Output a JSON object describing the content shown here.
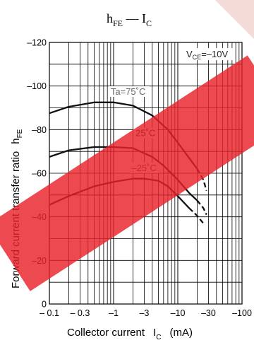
{
  "chart_data": {
    "type": "line",
    "title": {
      "main": "h",
      "main_sub": "FE",
      "sep": " — ",
      "right": "I",
      "right_sub": "C"
    },
    "xlabel": {
      "text": "Collector current",
      "symbol": "I",
      "symbol_sub": "C",
      "unit": "(mA)"
    },
    "ylabel": {
      "text": "Forward current transfer ratio",
      "symbol": "h",
      "symbol_sub": "FE"
    },
    "x_scale": "log",
    "xlim": [
      -0.1,
      -100
    ],
    "ylim": [
      0,
      -120
    ],
    "x_ticks": [
      "– 0.1",
      "– 0.3",
      "–1",
      "–3",
      "–10",
      "–30",
      "–100"
    ],
    "y_ticks": [
      "0",
      "–20",
      "–40",
      "–60",
      "–80",
      "–100",
      "–120"
    ],
    "grid": true,
    "annotation": {
      "main": "V",
      "sub": "CE",
      "value": "=–10V"
    },
    "series": [
      {
        "name": "Ta=75˚C",
        "color": "#111111",
        "x": [
          -0.1,
          -0.2,
          -0.5,
          -1,
          -2,
          -4,
          -7,
          -10,
          -15,
          -20
        ],
        "y": [
          -87.5,
          -90.5,
          -92.5,
          -92.5,
          -91,
          -86.5,
          -80,
          -74,
          -67,
          -62
        ],
        "dashed_x": [
          -20,
          -25,
          -28
        ],
        "dashed_y": [
          -62,
          -57,
          -52
        ]
      },
      {
        "name": "25˚C",
        "color": "#111111",
        "x": [
          -0.1,
          -0.2,
          -0.5,
          -1,
          -2,
          -4,
          -6,
          -10,
          -15,
          -20
        ],
        "y": [
          -67.5,
          -70.5,
          -72,
          -72,
          -71.5,
          -67.5,
          -63.5,
          -57,
          -51,
          -47.5
        ],
        "dashed_x": [
          -20,
          -25,
          -28
        ],
        "dashed_y": [
          -47.5,
          -44,
          -41
        ]
      },
      {
        "name": "–25˚C",
        "color": "#111111",
        "x": [
          -0.1,
          -0.2,
          -0.5,
          -1,
          -2,
          -3,
          -5,
          -7,
          -10,
          -15
        ],
        "y": [
          -45.5,
          -49.5,
          -54,
          -56,
          -57.5,
          -57.5,
          -56.5,
          -54,
          -49.5,
          -44
        ],
        "dashed_x": [
          -15,
          -20,
          -25
        ],
        "dashed_y": [
          -44,
          -40.5,
          -37
        ]
      }
    ]
  }
}
